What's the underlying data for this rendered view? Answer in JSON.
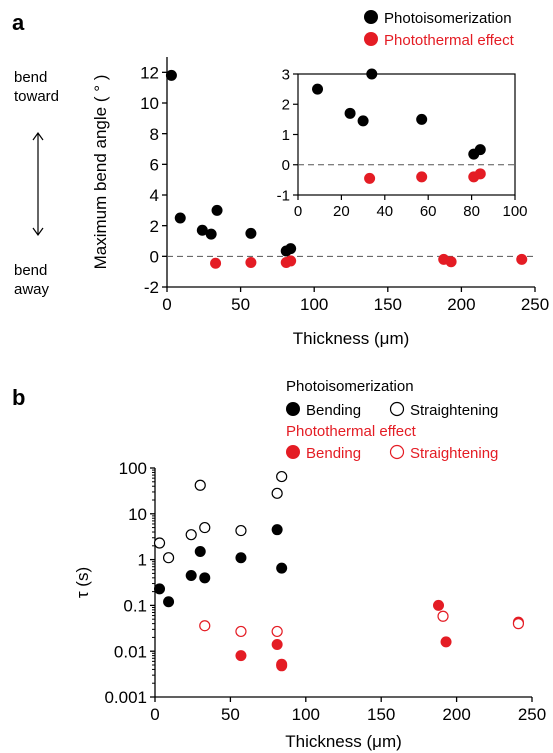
{
  "panel_labels": {
    "a": "a",
    "b": "b"
  },
  "panel_a": {
    "side_labels": {
      "toward_1": "bend",
      "toward_2": "toward",
      "away_1": "bend",
      "away_2": "away"
    },
    "legend": {
      "photoisomerization": "Photoisomerization",
      "photothermal": "Photothermal effect"
    }
  },
  "panel_b": {
    "legend": {
      "photoisomerization": "Photoisomerization",
      "bending": "Bending",
      "straightening": "Straightening",
      "photothermal": "Photothermal effect",
      "pt_bending": "Bending",
      "pt_straightening": "Straightening"
    }
  },
  "colors": {
    "black": "#000000",
    "red": "#e41c24",
    "dashed": "#555555"
  },
  "chart_data": [
    {
      "type": "scatter",
      "title": "",
      "xlabel": "Thickness (μm)",
      "ylabel": "Maximum bend angle ( ° )",
      "xlim": [
        0,
        250
      ],
      "ylim": [
        -2,
        13
      ],
      "xticks": [
        0,
        50,
        100,
        150,
        200,
        250
      ],
      "yticks": [
        -2,
        0,
        2,
        4,
        6,
        8,
        10,
        12
      ],
      "reference_line": 0,
      "series": [
        {
          "name": "Photoisomerization",
          "color": "#000000",
          "filled": true,
          "x": [
            3,
            9,
            24,
            30,
            34,
            57,
            81,
            84
          ],
          "y": [
            11.8,
            2.5,
            1.7,
            1.45,
            3.0,
            1.5,
            0.35,
            0.5
          ]
        },
        {
          "name": "Photothermal effect",
          "color": "#e41c24",
          "filled": true,
          "x": [
            33,
            57,
            81,
            84,
            188,
            193,
            241
          ],
          "y": [
            -0.45,
            -0.4,
            -0.4,
            -0.3,
            -0.2,
            -0.35,
            -0.2
          ]
        }
      ]
    },
    {
      "type": "scatter",
      "title": "",
      "xlabel": "",
      "ylabel": "",
      "xlim": [
        0,
        100
      ],
      "ylim": [
        -1,
        3
      ],
      "xticks": [
        0,
        20,
        40,
        60,
        80,
        100
      ],
      "yticks": [
        -1,
        0,
        1,
        2,
        3
      ],
      "reference_line": 0,
      "series": [
        {
          "name": "Photoisomerization",
          "color": "#000000",
          "filled": true,
          "x": [
            9,
            24,
            30,
            34,
            57,
            81,
            84
          ],
          "y": [
            2.5,
            1.7,
            1.45,
            3.0,
            1.5,
            0.35,
            0.5
          ]
        },
        {
          "name": "Photothermal effect",
          "color": "#e41c24",
          "filled": true,
          "x": [
            33,
            57,
            81,
            84
          ],
          "y": [
            -0.45,
            -0.4,
            -0.4,
            -0.3
          ]
        }
      ]
    },
    {
      "type": "scatter",
      "title": "",
      "xlabel": "Thickness (μm)",
      "ylabel": "τ (s)",
      "xlim": [
        0,
        250
      ],
      "ylim": [
        0.001,
        100
      ],
      "yscale": "log",
      "xticks": [
        0,
        50,
        100,
        150,
        200,
        250
      ],
      "yticks": [
        0.001,
        0.01,
        0.1,
        1,
        10,
        100
      ],
      "ytick_labels": [
        "0.001",
        "0.01",
        "0.1",
        "1",
        "10",
        "100"
      ],
      "series": [
        {
          "name": "Photoisomerization Bending",
          "color": "#000000",
          "filled": true,
          "x": [
            3,
            9,
            24,
            30,
            33,
            57,
            81,
            84
          ],
          "y": [
            0.23,
            0.12,
            0.45,
            1.5,
            0.4,
            1.1,
            4.5,
            0.65
          ]
        },
        {
          "name": "Photoisomerization Straightening",
          "color": "#000000",
          "filled": false,
          "x": [
            3,
            9,
            24,
            30,
            33,
            57,
            81,
            84
          ],
          "y": [
            2.3,
            1.1,
            3.5,
            42,
            5.0,
            4.3,
            28,
            65
          ]
        },
        {
          "name": "Photothermal effect Bending",
          "color": "#e41c24",
          "filled": true,
          "x": [
            57,
            81,
            84,
            84,
            188,
            193,
            241
          ],
          "y": [
            0.008,
            0.014,
            0.0048,
            0.0052,
            0.1,
            0.016,
            0.043
          ]
        },
        {
          "name": "Photothermal effect Straightening",
          "color": "#e41c24",
          "filled": false,
          "x": [
            33,
            57,
            81,
            191,
            241
          ],
          "y": [
            0.036,
            0.027,
            0.027,
            0.058,
            0.04
          ]
        }
      ]
    }
  ]
}
